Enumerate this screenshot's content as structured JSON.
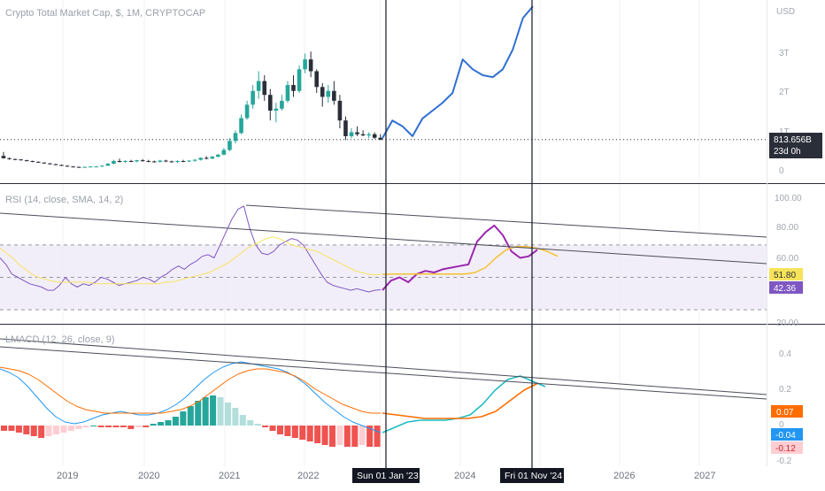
{
  "header": {
    "symbol_title": "Crypto Total Market Cap, $, 1M, CRYPTOCAP"
  },
  "price_pane": {
    "currency": "USD",
    "axis_ticks": [
      {
        "label": "3T",
        "value": 3.0
      },
      {
        "label": "2T",
        "value": 2.0
      },
      {
        "label": "1T",
        "value": 1.0
      },
      {
        "label": "0",
        "value": 0.0
      }
    ],
    "last_price_label": "813.656B",
    "countdown_label": "23d 0h",
    "last_price_value": 0.8137
  },
  "rsi_pane": {
    "title": "RSI (14, close, SMA, 14, 2)",
    "axis_ticks": [
      {
        "label": "100.00",
        "value": 100
      },
      {
        "label": "80.00",
        "value": 80
      },
      {
        "label": "60.00",
        "value": 60
      },
      {
        "label": "20.00",
        "value": 20
      }
    ],
    "band_upper": 70,
    "band_middle": 50,
    "band_lower": 30,
    "rsi_value_label": "42.36",
    "sma_value_label": "51.80"
  },
  "lmacd_pane": {
    "title": "LMACD (12, 26, close, 9)",
    "axis_ticks": [
      {
        "label": "0.4",
        "value": 0.4
      },
      {
        "label": "0.2",
        "value": 0.2
      },
      {
        "label": "0",
        "value": 0.0
      },
      {
        "label": "-0.2",
        "value": -0.2
      }
    ],
    "signal_value_label": "0.07",
    "macd_value_label": "-0.04",
    "histogram_value_label": "-0.12"
  },
  "time_axis": {
    "year_labels": [
      "2019",
      "2020",
      "2021",
      "2022",
      "2024",
      "2026",
      "2027"
    ],
    "marker_labels": [
      "Sun 01 Jan '23",
      "Fri 01 Nov '24"
    ]
  },
  "colors": {
    "candle_up": "#26a69a",
    "candle_down": "#2a2e39",
    "projection": "#2f6fd1",
    "rsi_line": "#7e57c2",
    "rsi_sma": "#f7e35a",
    "rsi_projection": "#9c27b0",
    "rsi_sma_projection": "#f2c12e",
    "band_fill": "#ede7f6",
    "macd_line": "#2196f3",
    "signal_line": "#ff6d00",
    "macd_projection": "#1fbcc3",
    "hist_red": "#ef5350",
    "hist_pink": "#ffcdd2",
    "hist_green": "#26a69a",
    "hist_lightgreen": "#b2dfdb"
  },
  "chart_data": {
    "type": "candlestick",
    "panes": [
      "price",
      "RSI",
      "LMACD"
    ],
    "price_unit": "USD (trillions)",
    "candles_estimated": [
      {
        "o": 0.4,
        "h": 0.5,
        "l": 0.33,
        "c": 0.34
      },
      {
        "o": 0.34,
        "h": 0.36,
        "l": 0.3,
        "c": 0.32
      },
      {
        "o": 0.32,
        "h": 0.33,
        "l": 0.29,
        "c": 0.31
      },
      {
        "o": 0.31,
        "h": 0.32,
        "l": 0.28,
        "c": 0.29
      },
      {
        "o": 0.29,
        "h": 0.3,
        "l": 0.26,
        "c": 0.27
      },
      {
        "o": 0.27,
        "h": 0.28,
        "l": 0.24,
        "c": 0.25
      },
      {
        "o": 0.25,
        "h": 0.26,
        "l": 0.22,
        "c": 0.23
      },
      {
        "o": 0.23,
        "h": 0.24,
        "l": 0.2,
        "c": 0.21
      },
      {
        "o": 0.21,
        "h": 0.22,
        "l": 0.18,
        "c": 0.19
      },
      {
        "o": 0.19,
        "h": 0.2,
        "l": 0.16,
        "c": 0.17
      },
      {
        "o": 0.17,
        "h": 0.18,
        "l": 0.14,
        "c": 0.15
      },
      {
        "o": 0.15,
        "h": 0.16,
        "l": 0.12,
        "c": 0.13
      },
      {
        "o": 0.13,
        "h": 0.14,
        "l": 0.11,
        "c": 0.12
      },
      {
        "o": 0.12,
        "h": 0.13,
        "l": 0.1,
        "c": 0.11
      },
      {
        "o": 0.11,
        "h": 0.13,
        "l": 0.1,
        "c": 0.12
      },
      {
        "o": 0.12,
        "h": 0.14,
        "l": 0.11,
        "c": 0.13
      },
      {
        "o": 0.13,
        "h": 0.14,
        "l": 0.12,
        "c": 0.13
      },
      {
        "o": 0.13,
        "h": 0.16,
        "l": 0.12,
        "c": 0.15
      },
      {
        "o": 0.15,
        "h": 0.22,
        "l": 0.14,
        "c": 0.2
      },
      {
        "o": 0.2,
        "h": 0.3,
        "l": 0.19,
        "c": 0.27
      },
      {
        "o": 0.27,
        "h": 0.33,
        "l": 0.23,
        "c": 0.25
      },
      {
        "o": 0.25,
        "h": 0.29,
        "l": 0.22,
        "c": 0.27
      },
      {
        "o": 0.27,
        "h": 0.3,
        "l": 0.24,
        "c": 0.26
      },
      {
        "o": 0.26,
        "h": 0.3,
        "l": 0.24,
        "c": 0.29
      },
      {
        "o": 0.29,
        "h": 0.32,
        "l": 0.25,
        "c": 0.27
      },
      {
        "o": 0.27,
        "h": 0.3,
        "l": 0.24,
        "c": 0.26
      },
      {
        "o": 0.26,
        "h": 0.28,
        "l": 0.23,
        "c": 0.25
      },
      {
        "o": 0.25,
        "h": 0.3,
        "l": 0.23,
        "c": 0.28
      },
      {
        "o": 0.28,
        "h": 0.3,
        "l": 0.24,
        "c": 0.26
      },
      {
        "o": 0.26,
        "h": 0.28,
        "l": 0.23,
        "c": 0.25
      },
      {
        "o": 0.25,
        "h": 0.29,
        "l": 0.22,
        "c": 0.27
      },
      {
        "o": 0.27,
        "h": 0.3,
        "l": 0.24,
        "c": 0.26
      },
      {
        "o": 0.26,
        "h": 0.29,
        "l": 0.24,
        "c": 0.28
      },
      {
        "o": 0.28,
        "h": 0.32,
        "l": 0.25,
        "c": 0.3
      },
      {
        "o": 0.3,
        "h": 0.36,
        "l": 0.28,
        "c": 0.35
      },
      {
        "o": 0.35,
        "h": 0.39,
        "l": 0.31,
        "c": 0.33
      },
      {
        "o": 0.33,
        "h": 0.4,
        "l": 0.32,
        "c": 0.38
      },
      {
        "o": 0.38,
        "h": 0.45,
        "l": 0.36,
        "c": 0.43
      },
      {
        "o": 0.43,
        "h": 0.6,
        "l": 0.42,
        "c": 0.55
      },
      {
        "o": 0.55,
        "h": 0.85,
        "l": 0.52,
        "c": 0.78
      },
      {
        "o": 0.78,
        "h": 1.05,
        "l": 0.72,
        "c": 0.98
      },
      {
        "o": 0.98,
        "h": 1.45,
        "l": 0.95,
        "c": 1.36
      },
      {
        "o": 1.36,
        "h": 1.8,
        "l": 1.32,
        "c": 1.7
      },
      {
        "o": 1.7,
        "h": 2.2,
        "l": 1.6,
        "c": 2.05
      },
      {
        "o": 2.05,
        "h": 2.55,
        "l": 1.85,
        "c": 2.3
      },
      {
        "o": 2.3,
        "h": 2.45,
        "l": 1.8,
        "c": 1.95
      },
      {
        "o": 1.95,
        "h": 2.1,
        "l": 1.3,
        "c": 1.55
      },
      {
        "o": 1.55,
        "h": 1.75,
        "l": 1.25,
        "c": 1.6
      },
      {
        "o": 1.6,
        "h": 1.95,
        "l": 1.55,
        "c": 1.8
      },
      {
        "o": 1.8,
        "h": 2.3,
        "l": 1.75,
        "c": 2.2
      },
      {
        "o": 2.2,
        "h": 2.45,
        "l": 1.9,
        "c": 2.05
      },
      {
        "o": 2.05,
        "h": 2.7,
        "l": 2.0,
        "c": 2.6
      },
      {
        "o": 2.6,
        "h": 3.0,
        "l": 2.5,
        "c": 2.85
      },
      {
        "o": 2.85,
        "h": 3.05,
        "l": 2.4,
        "c": 2.55
      },
      {
        "o": 2.55,
        "h": 2.6,
        "l": 2.0,
        "c": 2.15
      },
      {
        "o": 2.15,
        "h": 2.25,
        "l": 1.65,
        "c": 1.9
      },
      {
        "o": 1.9,
        "h": 2.2,
        "l": 1.75,
        "c": 2.05
      },
      {
        "o": 2.05,
        "h": 2.3,
        "l": 1.7,
        "c": 1.8
      },
      {
        "o": 1.8,
        "h": 1.95,
        "l": 1.1,
        "c": 1.3
      },
      {
        "o": 1.3,
        "h": 1.4,
        "l": 0.8,
        "c": 0.9
      },
      {
        "o": 0.9,
        "h": 1.1,
        "l": 0.85,
        "c": 1.0
      },
      {
        "o": 1.0,
        "h": 1.15,
        "l": 0.9,
        "c": 0.95
      },
      {
        "o": 0.95,
        "h": 1.05,
        "l": 0.9,
        "c": 0.92
      },
      {
        "o": 0.92,
        "h": 1.0,
        "l": 0.85,
        "c": 0.95
      },
      {
        "o": 0.95,
        "h": 1.0,
        "l": 0.83,
        "c": 0.86
      },
      {
        "o": 0.86,
        "h": 0.95,
        "l": 0.8,
        "c": 0.81
      }
    ],
    "projection_price_estimated": [
      0.85,
      1.3,
      1.15,
      0.9,
      1.35,
      1.55,
      1.75,
      2.0,
      2.85,
      2.6,
      2.45,
      2.4,
      2.6,
      3.1,
      3.9,
      4.2
    ],
    "rsi_estimated": [
      62,
      58,
      52,
      50,
      48,
      46,
      45,
      44,
      42,
      42,
      45,
      50,
      46,
      44,
      46,
      45,
      47,
      50,
      49,
      47,
      45,
      46,
      47,
      48,
      50,
      49,
      47,
      50,
      52,
      55,
      57,
      55,
      58,
      60,
      63,
      64,
      62,
      70,
      78,
      86,
      92,
      94,
      80,
      70,
      65,
      64,
      66,
      70,
      72,
      74,
      73,
      70,
      64,
      58,
      52,
      47,
      45,
      44,
      43,
      42,
      43,
      42,
      41,
      42,
      42.36
    ],
    "rsi_sma_estimated": [
      68,
      65,
      62,
      58,
      55,
      52,
      50,
      49,
      48,
      47,
      47,
      47,
      47,
      47,
      47,
      46,
      46,
      46,
      46,
      46,
      46,
      46,
      46,
      46,
      46,
      46,
      47,
      47,
      48,
      49,
      50,
      51,
      52,
      53,
      55,
      57,
      59,
      62,
      65,
      68,
      70,
      72,
      74,
      75,
      74,
      72,
      70,
      69,
      68,
      67,
      66,
      64,
      62,
      60,
      58,
      56,
      54,
      53,
      52,
      51.5,
      51.8
    ],
    "rsi_projection_estimated": [
      42,
      48,
      50,
      47,
      52,
      54,
      53,
      55,
      56,
      57,
      58,
      72,
      78,
      82,
      76,
      66,
      62,
      63,
      67
    ],
    "rsi_sma_projection_estimated": [
      51.8,
      52,
      52,
      52,
      52,
      52,
      52,
      52,
      52,
      53,
      56,
      62,
      67,
      69,
      69,
      68,
      66,
      63
    ],
    "lmacd_line_estimated": [
      0.32,
      0.3,
      0.27,
      0.22,
      0.16,
      0.1,
      0.05,
      0.02,
      0.01,
      0.02,
      0.04,
      0.06,
      0.07,
      0.08,
      0.07,
      0.06,
      0.06,
      0.07,
      0.09,
      0.12,
      0.16,
      0.21,
      0.26,
      0.3,
      0.33,
      0.35,
      0.36,
      0.35,
      0.34,
      0.33,
      0.32,
      0.3,
      0.27,
      0.23,
      0.18,
      0.13,
      0.09,
      0.05,
      0.02,
      0.0,
      -0.02,
      -0.04
    ],
    "lmacd_signal_estimated": [
      0.33,
      0.32,
      0.31,
      0.29,
      0.26,
      0.22,
      0.18,
      0.14,
      0.11,
      0.09,
      0.08,
      0.07,
      0.07,
      0.07,
      0.07,
      0.07,
      0.07,
      0.07,
      0.08,
      0.09,
      0.11,
      0.14,
      0.18,
      0.22,
      0.26,
      0.29,
      0.31,
      0.32,
      0.32,
      0.31,
      0.3,
      0.28,
      0.25,
      0.21,
      0.18,
      0.15,
      0.12,
      0.1,
      0.08,
      0.07,
      0.07
    ],
    "lmacd_projection_line_estimated": [
      -0.04,
      -0.01,
      0.02,
      0.03,
      0.03,
      0.03,
      0.04,
      0.06,
      0.12,
      0.2,
      0.26,
      0.28,
      0.25,
      0.22
    ],
    "lmacd_projection_signal_estimated": [
      0.07,
      0.06,
      0.05,
      0.04,
      0.04,
      0.04,
      0.04,
      0.05,
      0.08,
      0.14,
      0.2,
      0.24
    ],
    "lmacd_histogram_estimated": [
      -0.03,
      -0.03,
      -0.04,
      -0.05,
      -0.06,
      -0.07,
      -0.06,
      -0.05,
      -0.04,
      -0.03,
      -0.02,
      -0.01,
      0.0,
      -0.01,
      -0.01,
      -0.01,
      -0.01,
      -0.02,
      -0.01,
      -0.01,
      0.01,
      0.02,
      0.03,
      0.05,
      0.08,
      0.11,
      0.14,
      0.16,
      0.17,
      0.16,
      0.13,
      0.1,
      0.06,
      0.03,
      0.01,
      -0.01,
      -0.03,
      -0.05,
      -0.06,
      -0.07,
      -0.08,
      -0.09,
      -0.1,
      -0.11,
      -0.12,
      -0.11,
      -0.12,
      -0.12,
      -0.11,
      -0.12,
      -0.12
    ]
  }
}
